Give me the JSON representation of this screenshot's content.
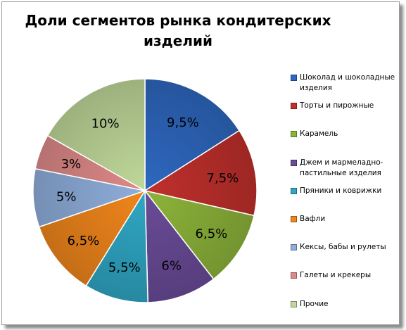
{
  "chart_data": {
    "type": "pie",
    "title": "Доли сегментов рынка кондитерских изделий",
    "slices": [
      {
        "label": "Шоколад и шоколадные изделия",
        "value": 9.5,
        "display": "9,5%",
        "color": "#2E68C0"
      },
      {
        "label": "Торты и пирожные",
        "value": 7.5,
        "display": "7,5%",
        "color": "#C0302C"
      },
      {
        "label": "Карамель",
        "value": 6.5,
        "display": "6,5%",
        "color": "#8DB43A"
      },
      {
        "label": "Джем и мармеладно-пастильные изделия",
        "value": 6,
        "display": "6%",
        "color": "#6A4C98"
      },
      {
        "label": "Пряники и коврижки",
        "value": 5.5,
        "display": "5,5%",
        "color": "#2FA7C4"
      },
      {
        "label": "Вафли",
        "value": 6.5,
        "display": "6,5%",
        "color": "#F0861C"
      },
      {
        "label": "Кексы, бабы и рулеты",
        "value": 5,
        "display": "5%",
        "color": "#8FAEDB"
      },
      {
        "label": "Галеты и крекеры",
        "value": 3,
        "display": "3%",
        "color": "#DE8A88"
      },
      {
        "label": "Прочие",
        "value": 10,
        "display": "10%",
        "color": "#C0D89A"
      }
    ],
    "legend_position": "right"
  }
}
